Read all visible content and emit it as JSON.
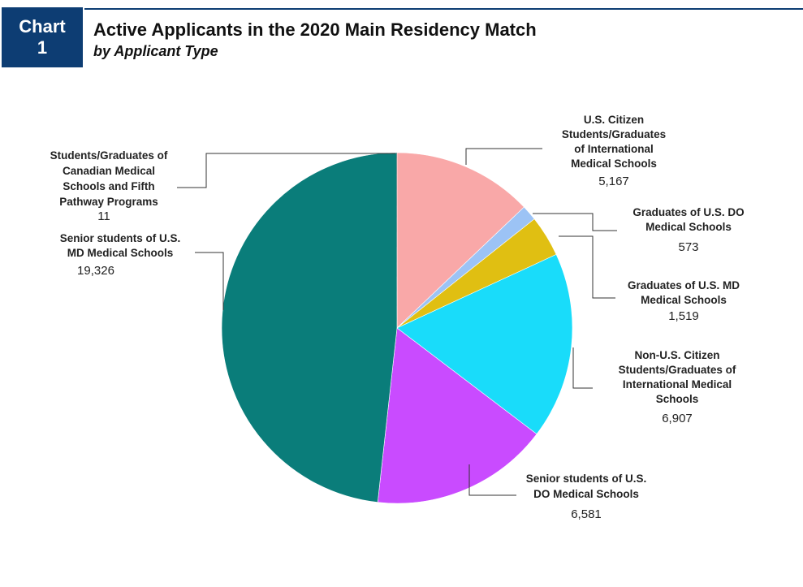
{
  "header": {
    "badge_line1": "Chart",
    "badge_line2": "1",
    "title": "Active Applicants in the 2020 Main Residency Match",
    "subtitle": "by Applicant Type"
  },
  "chart_data": {
    "type": "pie",
    "title": "Active Applicants in the 2020 Main Residency Match",
    "subtitle": "by Applicant Type",
    "start": "12 o'clock",
    "direction": "clockwise",
    "slices": [
      {
        "label_lines": [
          "U.S. Citizen",
          "Students/Graduates",
          "of International",
          "Medical Schools"
        ],
        "value": 5167,
        "value_text": "5,167",
        "color": "#f9a8a8"
      },
      {
        "label_lines": [
          "Graduates of U.S. DO",
          "Medical Schools"
        ],
        "value": 573,
        "value_text": "573",
        "color": "#9cc3f5"
      },
      {
        "label_lines": [
          "Graduates of U.S. MD",
          "Medical Schools"
        ],
        "value": 1519,
        "value_text": "1,519",
        "color": "#e0bf12"
      },
      {
        "label_lines": [
          "Non-U.S. Citizen",
          "Students/Graduates of",
          "International Medical",
          "Schools"
        ],
        "value": 6907,
        "value_text": "6,907",
        "color": "#19dcfa"
      },
      {
        "label_lines": [
          "Senior students of U.S.",
          "DO Medical Schools"
        ],
        "value": 6581,
        "value_text": "6,581",
        "color": "#c94bff"
      },
      {
        "label_lines": [
          "Senior students of U.S.",
          "MD Medical Schools"
        ],
        "value": 19326,
        "value_text": "19,326",
        "color": "#0a7d7a"
      },
      {
        "label_lines": [
          "Students/Graduates of",
          "Canadian Medical",
          "Schools and Fifth",
          "Pathway Programs"
        ],
        "value": 11,
        "value_text": "11",
        "color": "#4a4a4a"
      }
    ]
  }
}
